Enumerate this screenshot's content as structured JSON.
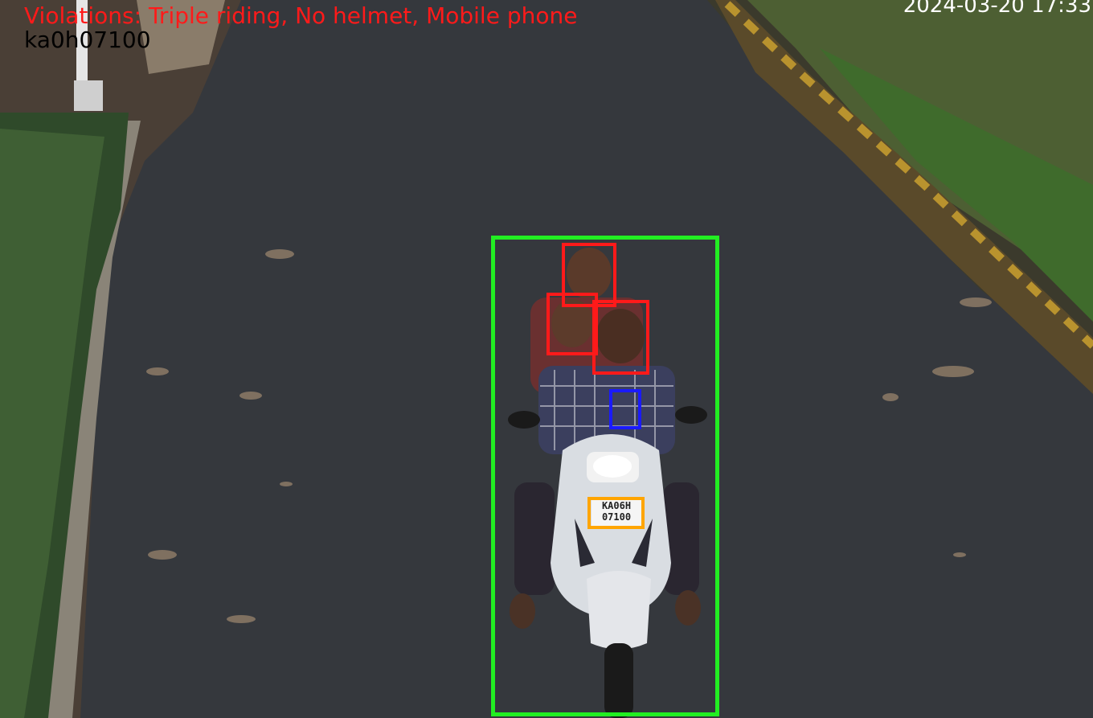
{
  "overlay": {
    "violations_text": "Violations: Triple riding, No helmet, Mobile phone",
    "plate_read": "ka0h07100",
    "timestamp": "2024-03-20 17:33"
  },
  "detections": {
    "vehicle": {
      "label": "vehicle-detection-box",
      "color": "#22ee22"
    },
    "heads": [
      {
        "label": "no-helmet-head-1",
        "color": "#ff1a1a"
      },
      {
        "label": "no-helmet-head-2",
        "color": "#ff1a1a"
      },
      {
        "label": "no-helmet-head-3",
        "color": "#ff1a1a"
      }
    ],
    "phone": {
      "label": "mobile-phone-box",
      "color": "#1a1aff"
    },
    "plate": {
      "label": "license-plate-box",
      "color": "#ffa500"
    }
  },
  "plate_printed": {
    "line1": "KA06H",
    "line2": "07100"
  },
  "colors": {
    "violation_text": "#ff1a1a",
    "vehicle_box": "#22ee22",
    "head_box": "#ff1a1a",
    "phone_box": "#1a1aff",
    "plate_box": "#ffa500"
  }
}
